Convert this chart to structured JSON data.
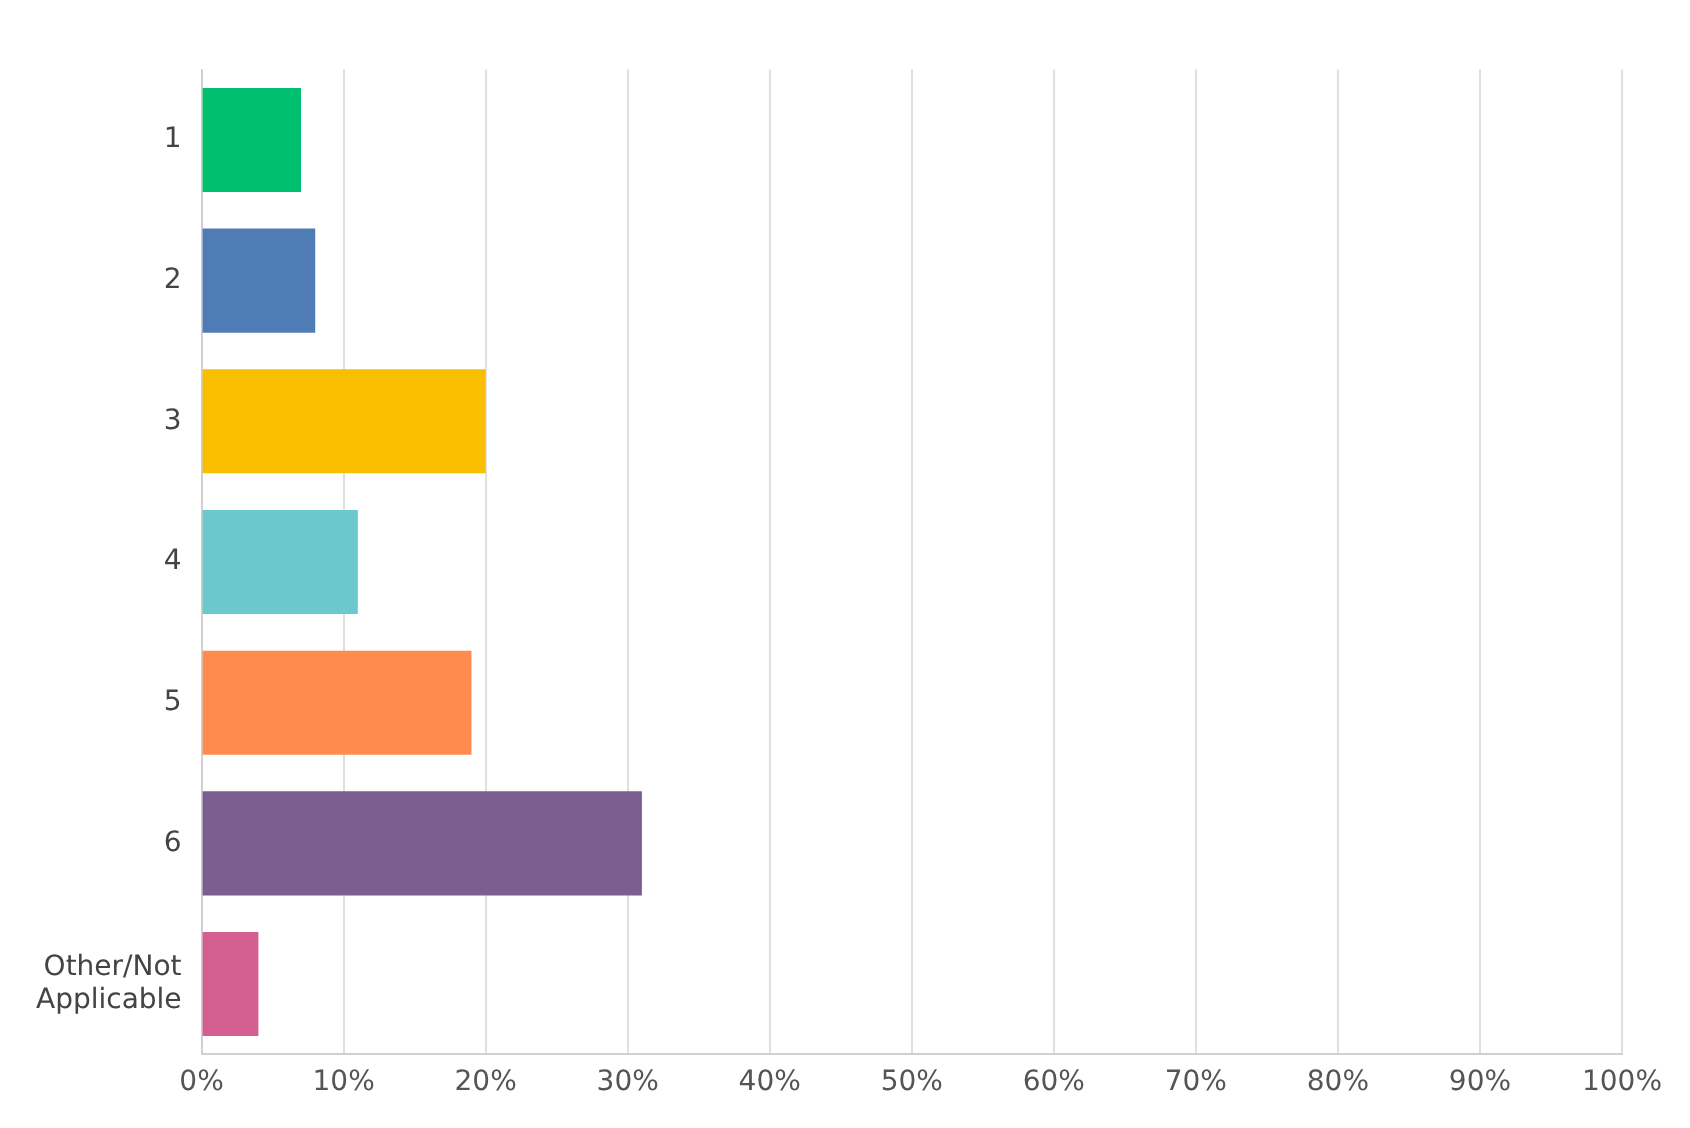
{
  "chart_data": {
    "type": "bar",
    "orientation": "horizontal",
    "categories": [
      "1",
      "2",
      "3",
      "4",
      "5",
      "6",
      "Other/Not Applicable"
    ],
    "values": [
      7,
      8,
      20,
      11,
      19,
      31,
      4
    ],
    "colors": [
      "#00bf6f",
      "#507cb6",
      "#f9be00",
      "#6bc8cd",
      "#ff8b4f",
      "#7d5e90",
      "#d25f90"
    ],
    "xlim": [
      0,
      100
    ],
    "xticks": [
      {
        "value": 0,
        "label": "0%"
      },
      {
        "value": 10,
        "label": "10%"
      },
      {
        "value": 20,
        "label": "20%"
      },
      {
        "value": 30,
        "label": "30%"
      },
      {
        "value": 40,
        "label": "40%"
      },
      {
        "value": 50,
        "label": "50%"
      },
      {
        "value": 60,
        "label": "60%"
      },
      {
        "value": 70,
        "label": "70%"
      },
      {
        "value": 80,
        "label": "80%"
      },
      {
        "value": 90,
        "label": "90%"
      },
      {
        "value": 100,
        "label": "100%"
      }
    ],
    "grid": "x",
    "legend": false
  }
}
